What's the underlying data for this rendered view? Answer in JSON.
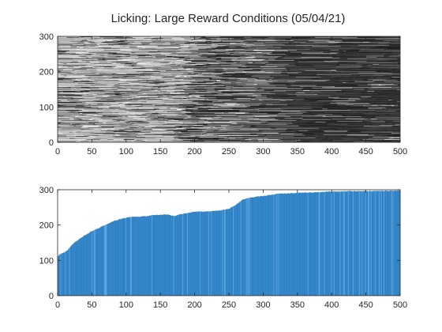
{
  "figure": {
    "title": "Licking: Large Reward Conditions (05/04/21)"
  },
  "chart_data": [
    {
      "type": "heatmap",
      "xlim": [
        0,
        500
      ],
      "ylim": [
        0,
        300
      ],
      "xticks": [
        0,
        50,
        100,
        150,
        200,
        250,
        300,
        350,
        400,
        450,
        500
      ],
      "yticks": [
        0,
        100,
        200,
        300
      ],
      "colormap": "gray",
      "background_color": "#2b2b2b",
      "grid": false,
      "legend": "none"
    },
    {
      "type": "bar",
      "xlim": [
        0,
        500
      ],
      "ylim": [
        0,
        300
      ],
      "xticks": [
        0,
        50,
        100,
        150,
        200,
        250,
        300,
        350,
        400,
        450,
        500
      ],
      "yticks": [
        0,
        100,
        200,
        300
      ],
      "bar_color": "#2f82c6",
      "grid": false,
      "legend": "none",
      "profile_x": [
        0,
        3,
        6,
        10,
        14,
        18,
        22,
        26,
        30,
        35,
        40,
        45,
        50,
        55,
        60,
        65,
        70,
        75,
        80,
        85,
        90,
        95,
        100,
        110,
        120,
        130,
        140,
        150,
        160,
        170,
        180,
        190,
        200,
        210,
        220,
        230,
        240,
        250,
        260,
        270,
        280,
        290,
        300,
        310,
        320,
        330,
        340,
        350,
        360,
        370,
        380,
        390,
        400,
        410,
        420,
        440,
        460,
        480,
        500
      ],
      "profile_y": [
        110,
        117,
        120,
        123,
        128,
        137,
        146,
        153,
        158,
        165,
        171,
        177,
        183,
        187,
        191,
        197,
        201,
        205,
        210,
        213,
        216,
        219,
        221,
        223,
        224,
        225,
        228,
        229,
        230,
        225,
        231,
        234,
        238,
        238,
        238,
        240,
        242,
        246,
        257,
        272,
        277,
        280,
        282,
        285,
        288,
        289,
        290,
        291,
        292,
        292,
        293,
        294,
        295,
        295,
        296,
        296,
        296,
        297,
        297
      ]
    }
  ]
}
